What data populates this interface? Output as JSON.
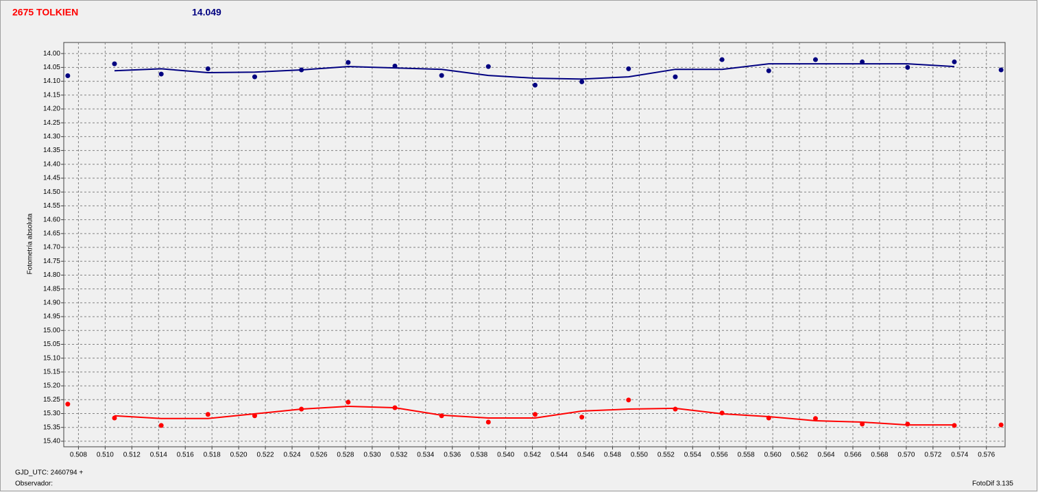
{
  "chart_data": {
    "type": "scatter",
    "title": "2675 TOLKIEN",
    "subtitle": "14.049",
    "ylabel": "Fotometría absoluta",
    "xlabel": "GJD_UTC: 2460794 +",
    "observer_label": "Observador:",
    "software": "FotoDif 3.135",
    "x": [
      0.5072,
      0.5107,
      0.5142,
      0.5177,
      0.5212,
      0.5247,
      0.5282,
      0.5317,
      0.5352,
      0.5387,
      0.5422,
      0.5457,
      0.5492,
      0.5527,
      0.5562,
      0.5597,
      0.5632,
      0.5667,
      0.5701,
      0.5736,
      0.5771
    ],
    "series": [
      {
        "color": "#000080",
        "values": [
          14.08,
          14.037,
          14.074,
          14.055,
          14.084,
          14.059,
          14.032,
          14.045,
          14.079,
          14.047,
          14.114,
          14.102,
          14.055,
          14.084,
          14.022,
          14.062,
          14.022,
          14.03,
          14.05,
          14.03,
          14.059
        ],
        "fit": [
          null,
          14.062,
          14.055,
          14.069,
          14.067,
          14.059,
          14.047,
          14.052,
          14.057,
          14.079,
          14.089,
          14.092,
          14.084,
          14.057,
          14.057,
          14.037,
          14.037,
          14.037,
          14.037,
          14.047,
          null
        ]
      },
      {
        "color": "#ff0000",
        "values": [
          15.266,
          15.316,
          15.343,
          15.303,
          15.308,
          15.284,
          15.259,
          15.279,
          15.308,
          15.331,
          15.303,
          15.313,
          15.251,
          15.284,
          15.298,
          15.316,
          15.318,
          15.338,
          15.338,
          15.343,
          15.341
        ],
        "fit": [
          null,
          15.308,
          15.318,
          15.318,
          15.301,
          15.284,
          15.274,
          15.279,
          15.306,
          15.316,
          15.316,
          15.291,
          15.284,
          15.281,
          15.301,
          15.311,
          15.326,
          15.331,
          15.341,
          15.341,
          null
        ]
      }
    ],
    "xlim": [
      0.5069,
      0.5774
    ],
    "ylim": [
      15.42,
      13.96
    ],
    "grid": true,
    "xticks": [
      0.508,
      {
        "value": 0.51,
        "label": "0.510"
      },
      0.512,
      0.514,
      0.516,
      0.518,
      {
        "value": 0.52,
        "label": "0.520"
      },
      0.522,
      0.524,
      0.526,
      0.528,
      {
        "value": 0.53,
        "label": "0.530"
      },
      0.532,
      0.534,
      0.536,
      0.538,
      {
        "value": 0.54,
        "label": "0.540"
      },
      0.542,
      0.544,
      0.546,
      0.548,
      {
        "value": 0.55,
        "label": "0.550"
      },
      0.552,
      0.554,
      0.556,
      0.558,
      {
        "value": 0.56,
        "label": "0.560"
      },
      0.562,
      0.564,
      0.566,
      0.568,
      {
        "value": 0.57,
        "label": "0.570"
      },
      0.572,
      0.574,
      0.576
    ],
    "yticks": [
      {
        "value": 14,
        "label": "14.00"
      },
      14.05,
      {
        "value": 14.1,
        "label": "14.10"
      },
      14.15,
      {
        "value": 14.2,
        "label": "14.20"
      },
      14.25,
      {
        "value": 14.3,
        "label": "14.30"
      },
      14.35,
      {
        "value": 14.4,
        "label": "14.40"
      },
      14.45,
      {
        "value": 14.5,
        "label": "14.50"
      },
      14.55,
      {
        "value": 14.6,
        "label": "14.60"
      },
      14.65,
      {
        "value": 14.7,
        "label": "14.70"
      },
      14.75,
      {
        "value": 14.8,
        "label": "14.80"
      },
      14.85,
      {
        "value": 14.9,
        "label": "14.90"
      },
      14.95,
      {
        "value": 15,
        "label": "15.00"
      },
      15.05,
      {
        "value": 15.1,
        "label": "15.10"
      },
      15.15,
      {
        "value": 15.2,
        "label": "15.20"
      },
      15.25,
      {
        "value": 15.3,
        "label": "15.30"
      },
      15.35,
      {
        "value": 15.4,
        "label": "15.40"
      }
    ]
  }
}
